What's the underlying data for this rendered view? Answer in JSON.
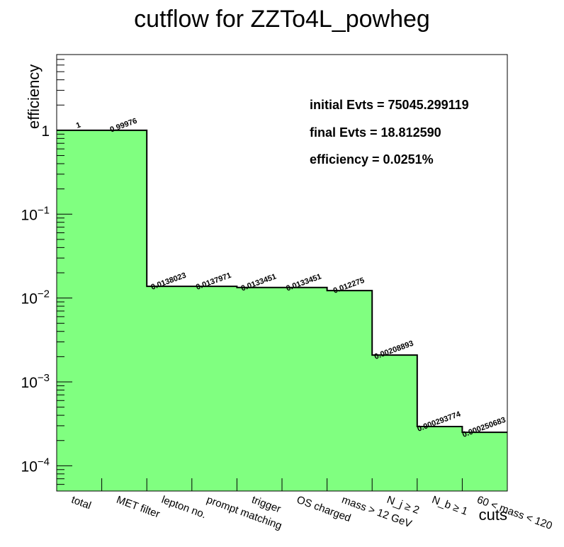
{
  "chart_data": {
    "type": "bar",
    "title": "cutflow for ZZTo4L_powheg",
    "xlabel": "cuts",
    "ylabel": "efficiency",
    "yscale": "log",
    "ylim": [
      5e-05,
      8
    ],
    "fill_color": "#80ff80",
    "line_color": "#000000",
    "categories": [
      "total",
      "MET filter",
      "lepton no.",
      "prompt matching",
      "trigger",
      "OS charged",
      "mass > 12 GeV",
      "N_j ≥ 2",
      "N_b ≥ 1",
      "60 < mass < 120"
    ],
    "values": [
      1,
      0.99976,
      0.0138023,
      0.0137971,
      0.0133451,
      0.0133451,
      0.012275,
      0.00208893,
      0.000293774,
      0.000250683
    ],
    "data_labels": [
      "1",
      "0.99976",
      "0.0138023",
      "0.0137971",
      "0.0133451",
      "0.0133451",
      "0.012275",
      "0.00208893",
      "0.000293774",
      "0.000250683"
    ],
    "y_ticks": [
      {
        "value": 1,
        "base": "1",
        "exp": ""
      },
      {
        "value": 0.1,
        "base": "10",
        "exp": "−1"
      },
      {
        "value": 0.01,
        "base": "10",
        "exp": "−2"
      },
      {
        "value": 0.001,
        "base": "10",
        "exp": "−3"
      },
      {
        "value": 0.0001,
        "base": "10",
        "exp": "−4"
      }
    ],
    "annotations": [
      "initial Evts = 75045.299119",
      "final Evts = 18.812590",
      "efficiency = 0.0251%"
    ],
    "grid": false,
    "legend": "none"
  }
}
